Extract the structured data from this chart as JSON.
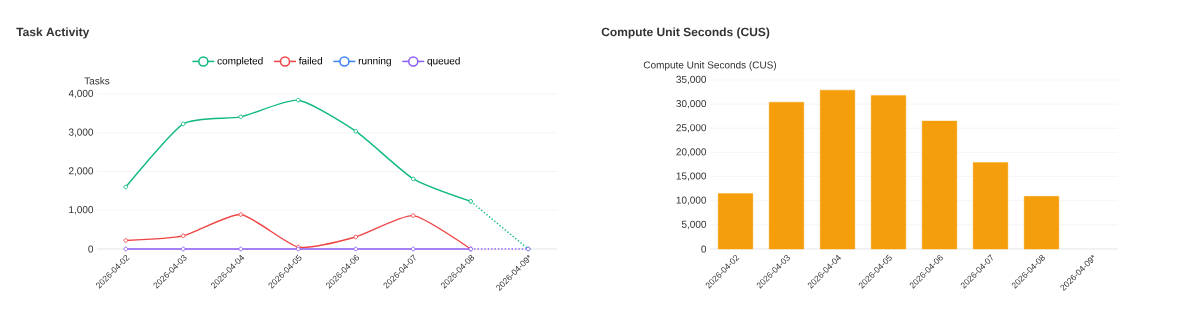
{
  "chart_data": [
    {
      "type": "line",
      "title": "Task Activity",
      "ylabel": "Tasks",
      "categories": [
        "2026-04-02",
        "2026-04-03",
        "2026-04-04",
        "2026-04-05",
        "2026-04-06",
        "2026-04-07",
        "2026-04-08",
        "2026-04-09*"
      ],
      "series": [
        {
          "name": "completed",
          "color": "#10b981",
          "values": [
            1600,
            3230,
            3410,
            3840,
            3040,
            1810,
            1230,
            null
          ]
        },
        {
          "name": "failed",
          "color": "#ef4444",
          "values": [
            220,
            340,
            890,
            50,
            310,
            860,
            0,
            null
          ]
        },
        {
          "name": "running",
          "color": "#3b82f6",
          "values": [
            null,
            null,
            null,
            null,
            null,
            null,
            null,
            null
          ]
        },
        {
          "name": "queued",
          "color": "#8b5cf6",
          "values": [
            0,
            0,
            0,
            0,
            0,
            0,
            0,
            null
          ]
        },
        {
          "color": "#10b981",
          "line_style": "dotted",
          "values": [
            null,
            null,
            null,
            null,
            null,
            null,
            1230,
            0
          ]
        },
        {
          "color": "#8b5cf6",
          "line_style": "dotted",
          "values": [
            null,
            null,
            null,
            null,
            null,
            null,
            0,
            0
          ]
        }
      ],
      "ylim": [
        0,
        4000
      ],
      "yticks": [
        0,
        {
          "value": 1000,
          "label": "1,000"
        },
        {
          "value": 2000,
          "label": "2,000"
        },
        {
          "value": 3000,
          "label": "3,000"
        },
        {
          "value": 4000,
          "label": "4,000"
        }
      ],
      "grid": "y",
      "legend": "top",
      "marker": "circle",
      "line_style": "solid"
    },
    {
      "type": "bar",
      "title": "Compute Unit Seconds (CUS)",
      "ylabel": "Compute Unit Seconds (CUS)",
      "categories": [
        "2026-04-02",
        "2026-04-03",
        "2026-04-04",
        "2026-04-05",
        "2026-04-06",
        "2026-04-07",
        "2026-04-08",
        "2026-04-09*"
      ],
      "values": [
        11500,
        30400,
        32900,
        31800,
        26500,
        17900,
        10900,
        null
      ],
      "color": "#f59e0b",
      "ylim": [
        0,
        35000
      ],
      "yticks": [
        0,
        {
          "value": 5000,
          "label": "5,000"
        },
        {
          "value": 10000,
          "label": "10,000"
        },
        {
          "value": 15000,
          "label": "15,000"
        },
        {
          "value": 20000,
          "label": "20,000"
        },
        {
          "value": 25000,
          "label": "25,000"
        },
        {
          "value": 30000,
          "label": "30,000"
        },
        {
          "value": 35000,
          "label": "35,000"
        }
      ],
      "grid": "y"
    }
  ]
}
